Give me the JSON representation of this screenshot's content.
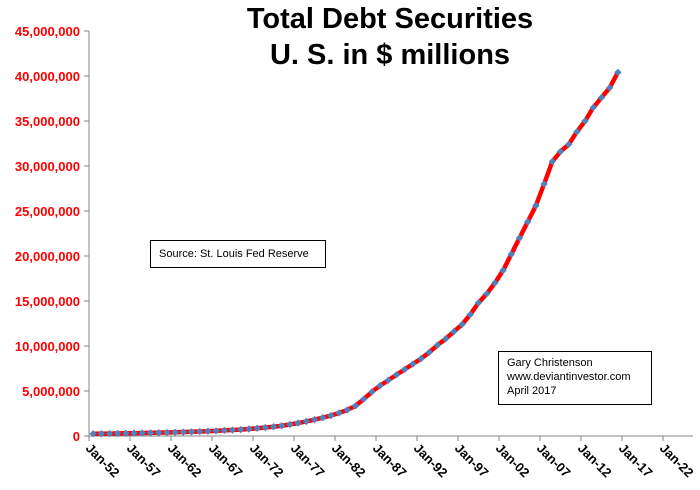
{
  "chart_data": {
    "type": "line",
    "title": "Total Debt Securities",
    "subtitle": "U. S. in $ millions",
    "xlabel": "",
    "ylabel": "",
    "ylim": [
      0,
      45000000
    ],
    "y_ticks": [
      0,
      5000000,
      10000000,
      15000000,
      20000000,
      25000000,
      30000000,
      35000000,
      40000000,
      45000000
    ],
    "y_tick_labels": [
      "0",
      "5,000,000",
      "10,000,000",
      "15,000,000",
      "20,000,000",
      "25,000,000",
      "30,000,000",
      "35,000,000",
      "40,000,000",
      "45,000,000"
    ],
    "x_tick_labels": [
      "Jan-52",
      "Jan-57",
      "Jan-62",
      "Jan-67",
      "Jan-72",
      "Jan-77",
      "Jan-82",
      "Jan-87",
      "Jan-92",
      "Jan-97",
      "Jan-02",
      "Jan-07",
      "Jan-12",
      "Jan-17",
      "Jan-22"
    ],
    "x_start_year": 1952,
    "x_end_year": 2022,
    "grid": false,
    "series": [
      {
        "name": "Total Debt Securities",
        "line_color": "#ff0000",
        "marker_color": "#4f81bd",
        "x": [
          1952,
          1953,
          1954,
          1955,
          1956,
          1957,
          1958,
          1959,
          1960,
          1961,
          1962,
          1963,
          1964,
          1965,
          1966,
          1967,
          1968,
          1969,
          1970,
          1971,
          1972,
          1973,
          1974,
          1975,
          1976,
          1977,
          1978,
          1979,
          1980,
          1981,
          1982,
          1983,
          1984,
          1985,
          1986,
          1987,
          1988,
          1989,
          1990,
          1991,
          1992,
          1993,
          1994,
          1995,
          1996,
          1997,
          1998,
          1999,
          2000,
          2001,
          2002,
          2003,
          2004,
          2005,
          2006,
          2007,
          2008,
          2009,
          2010,
          2011,
          2012,
          2013,
          2014,
          2015,
          2016
        ],
        "values": [
          250000,
          260000,
          270000,
          290000,
          300000,
          310000,
          330000,
          350000,
          370000,
          390000,
          410000,
          440000,
          470000,
          500000,
          530000,
          570000,
          620000,
          660000,
          710000,
          780000,
          860000,
          940000,
          1030000,
          1140000,
          1280000,
          1440000,
          1620000,
          1820000,
          2030000,
          2270000,
          2560000,
          2900000,
          3350000,
          4100000,
          4900000,
          5600000,
          6200000,
          6800000,
          7400000,
          8000000,
          8600000,
          9300000,
          10100000,
          10800000,
          11600000,
          12400000,
          13500000,
          14800000,
          15800000,
          17000000,
          18400000,
          20200000,
          22000000,
          23800000,
          25600000,
          28000000,
          30500000,
          31600000,
          32400000,
          33800000,
          35000000,
          36500000,
          37600000,
          38700000,
          40400000
        ]
      }
    ],
    "annotations": [
      "Source:  St. Louis Fed Reserve",
      "Gary Christenson",
      "www.deviantinvestor.com",
      "April 2017"
    ]
  }
}
